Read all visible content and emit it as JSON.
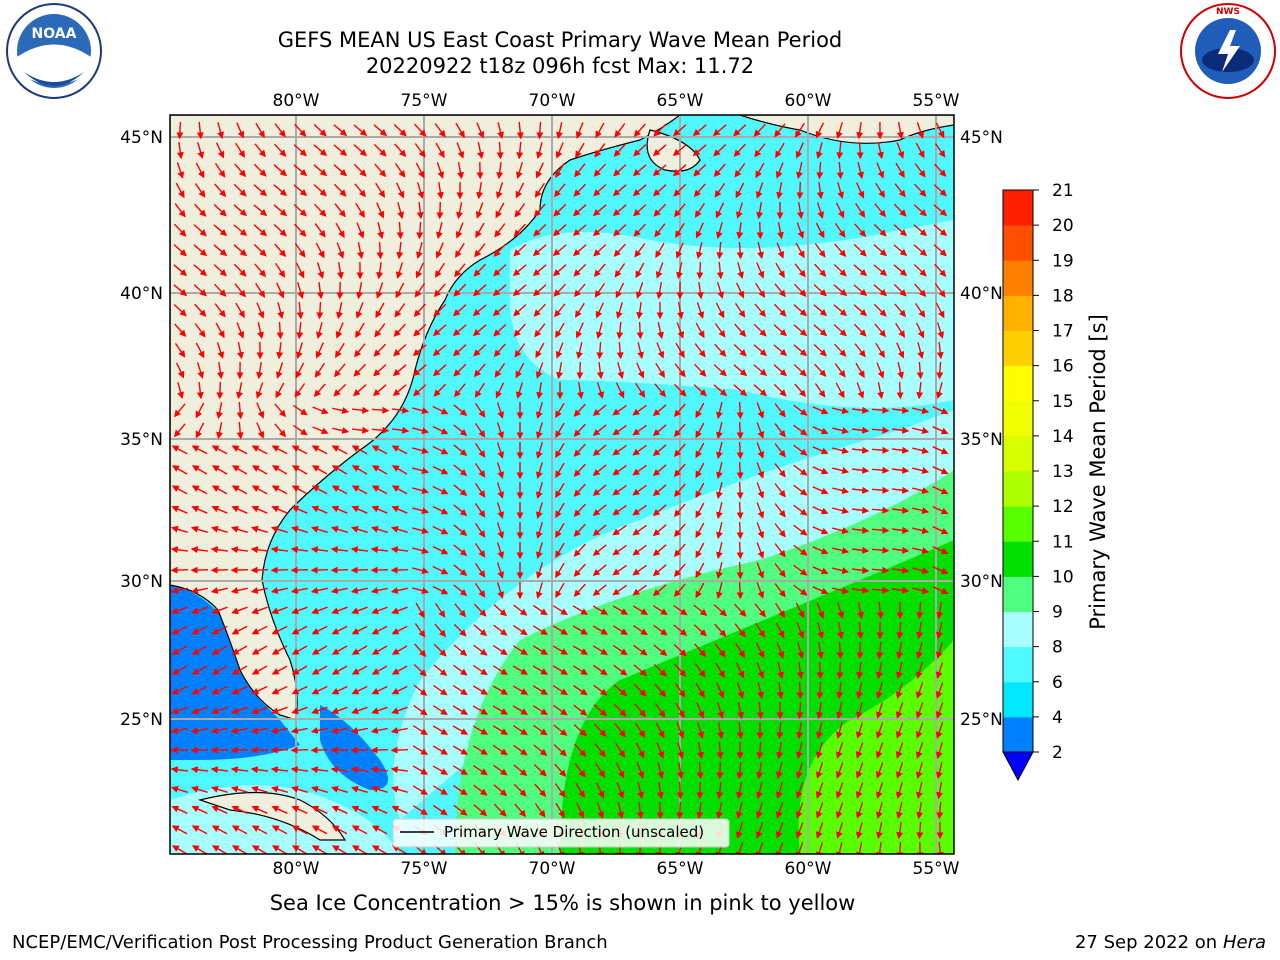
{
  "title_line1": "GEFS MEAN US East Coast Primary Wave Mean Period",
  "title_line2": "20220922 t18z 096h fcst   Max: 11.72",
  "caption": "Sea Ice Concentration > 15% is shown in pink to yellow",
  "credit": "NCEP/EMC/Verification Post Processing Product Generation Branch",
  "date": "27 Sep 2022 on",
  "host": "Hera",
  "legend": {
    "label": "Primary Wave Direction (unscaled)"
  },
  "lon_labels": [
    "80°W",
    "75°W",
    "70°W",
    "65°W",
    "60°W",
    "55°W"
  ],
  "lat_labels": [
    "45°N",
    "40°N",
    "35°N",
    "30°N",
    "25°N"
  ],
  "colorbar": {
    "label": "Primary Wave Mean Period [s]",
    "ticks": [
      "2",
      "4",
      "6",
      "8",
      "9",
      "10",
      "11",
      "12",
      "13",
      "14",
      "15",
      "16",
      "17",
      "18",
      "19",
      "20",
      "21"
    ],
    "colors": [
      "#0080ff",
      "#00e8ff",
      "#50f8ff",
      "#a8ffff",
      "#50ff80",
      "#00e000",
      "#58ff00",
      "#b0ff00",
      "#d8ff00",
      "#f0ff00",
      "#ffff00",
      "#ffd000",
      "#ffb000",
      "#ff8000",
      "#ff5000",
      "#ff2000"
    ],
    "under_color": "#0000ff"
  },
  "logos": {
    "noaa": {
      "name": "noaa-logo",
      "text": "NOAA"
    },
    "nws": {
      "name": "nws-logo",
      "text": "NATIONAL WEATHER SERVICE"
    }
  }
}
